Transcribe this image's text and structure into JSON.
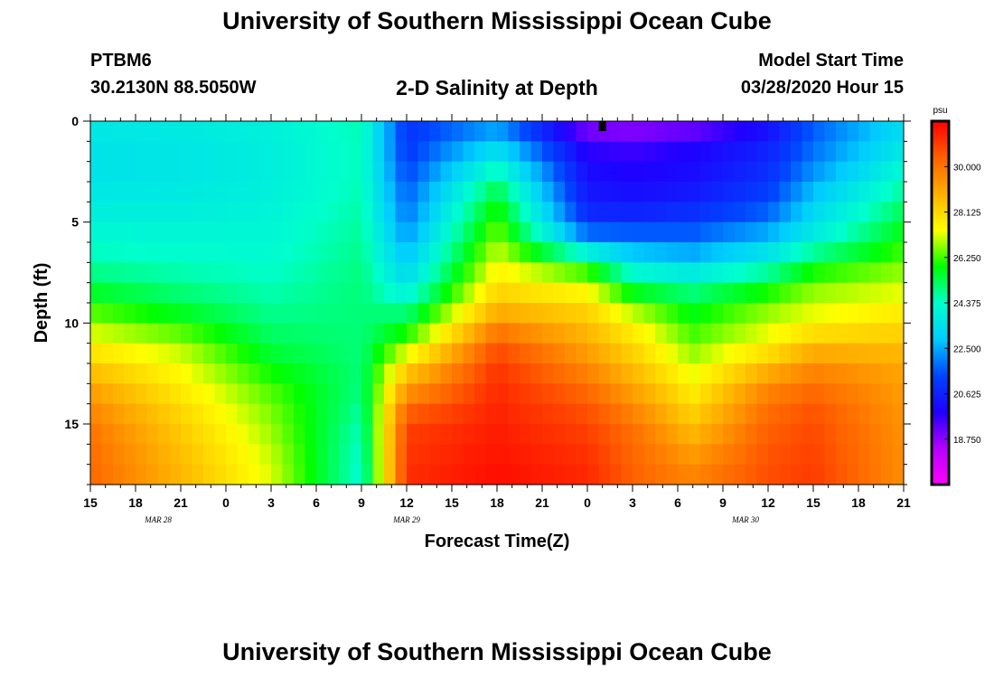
{
  "header": {
    "title": "University of Southern Mississippi Ocean Cube",
    "station_id": "PTBM6",
    "station_coords": "30.2130N 88.5050W",
    "chart_title": "2-D Salinity at Depth",
    "model_start_label": "Model Start Time",
    "model_start_value": "03/28/2020 Hour 15"
  },
  "footer": {
    "title": "University of Southern Mississippi Ocean Cube"
  },
  "chart_data": {
    "type": "heatmap",
    "title": "2-D Salinity at Depth",
    "xlabel": "Forecast Time(Z)",
    "ylabel": "Depth (ft)",
    "x_ticks": [
      "15",
      "18",
      "21",
      "0",
      "3",
      "6",
      "9",
      "12",
      "15",
      "18",
      "21",
      "0",
      "3",
      "6",
      "9",
      "12",
      "15",
      "18",
      "21"
    ],
    "x_range_hours": [
      0,
      54
    ],
    "date_labels": [
      {
        "text": "MAR  28",
        "hour": 4.5
      },
      {
        "text": "MAR  29",
        "hour": 21
      },
      {
        "text": "MAR  30",
        "hour": 43.5
      }
    ],
    "y_ticks": [
      0,
      5,
      10,
      15
    ],
    "ylim": [
      0,
      18
    ],
    "current_time_hour": 34,
    "colorbar": {
      "unit": "psu",
      "min": 16.875,
      "max": 31.875,
      "labels": [
        "30.000",
        "28.125",
        "26.250",
        "24.375",
        "22.500",
        "20.625",
        "18.750"
      ],
      "colors": [
        "#ff00ff",
        "#b400ff",
        "#1e00ff",
        "#0044ff",
        "#00ccff",
        "#00ffcc",
        "#00ff00",
        "#ffff00",
        "#ffb000",
        "#ff6000",
        "#ff0000"
      ]
    },
    "depth_levels_ft": [
      0,
      1,
      2,
      3,
      4,
      5,
      6,
      7,
      8,
      9,
      10,
      11,
      12,
      13,
      14,
      15,
      16,
      17,
      18
    ],
    "time_columns_hours": [
      0,
      6,
      12,
      18,
      21,
      27,
      33,
      36,
      40,
      45,
      48,
      54
    ],
    "salinity_psu": [
      [
        23.8,
        23.8,
        24.0,
        24.6,
        21.0,
        22.0,
        18.6,
        18.4,
        18.6,
        20.0,
        21.5,
        23.3
      ],
      [
        23.6,
        23.7,
        23.9,
        24.5,
        21.0,
        23.0,
        19.5,
        19.4,
        19.8,
        20.5,
        21.8,
        23.5
      ],
      [
        23.5,
        23.6,
        23.9,
        24.5,
        21.2,
        24.0,
        20.0,
        19.8,
        20.0,
        20.8,
        22.0,
        24.0
      ],
      [
        23.6,
        23.7,
        23.9,
        24.5,
        21.5,
        25.0,
        20.2,
        20.0,
        20.2,
        21.0,
        22.5,
        24.5
      ],
      [
        23.8,
        23.8,
        24.0,
        24.6,
        21.8,
        25.8,
        20.5,
        20.3,
        20.6,
        21.4,
        23.0,
        25.0
      ],
      [
        24.0,
        24.0,
        24.1,
        24.7,
        22.0,
        26.3,
        21.0,
        21.0,
        21.2,
        22.0,
        23.5,
        25.5
      ],
      [
        24.3,
        24.2,
        24.2,
        24.8,
        22.5,
        26.8,
        22.5,
        22.2,
        22.0,
        23.0,
        24.0,
        26.0
      ],
      [
        24.6,
        24.4,
        24.3,
        24.9,
        23.0,
        27.3,
        25.5,
        23.5,
        23.0,
        24.0,
        25.5,
        26.5
      ],
      [
        25.2,
        24.8,
        24.5,
        25.0,
        23.5,
        27.9,
        27.0,
        25.0,
        24.5,
        25.5,
        26.5,
        27.0
      ],
      [
        26.0,
        25.3,
        24.7,
        25.0,
        24.5,
        28.5,
        28.0,
        26.5,
        25.5,
        26.5,
        27.0,
        27.5
      ],
      [
        26.8,
        26.0,
        25.0,
        25.0,
        25.5,
        29.5,
        28.5,
        27.5,
        26.0,
        27.0,
        27.5,
        28.0
      ],
      [
        27.5,
        26.8,
        25.3,
        25.0,
        26.5,
        30.5,
        29.0,
        28.0,
        26.5,
        27.5,
        28.5,
        28.5
      ],
      [
        28.3,
        27.3,
        25.7,
        25.0,
        28.0,
        31.0,
        29.5,
        28.5,
        27.0,
        28.5,
        29.5,
        29.0
      ],
      [
        29.0,
        27.6,
        26.2,
        25.0,
        29.0,
        31.2,
        30.0,
        29.0,
        27.5,
        29.5,
        30.0,
        29.2
      ],
      [
        29.5,
        28.0,
        26.5,
        24.8,
        30.0,
        31.3,
        30.5,
        29.5,
        28.0,
        30.0,
        30.5,
        29.3
      ],
      [
        29.9,
        28.3,
        26.7,
        24.6,
        30.8,
        31.4,
        30.8,
        30.0,
        28.5,
        30.3,
        30.7,
        29.4
      ],
      [
        30.1,
        28.5,
        26.9,
        24.4,
        31.0,
        31.5,
        31.0,
        30.2,
        29.0,
        30.5,
        30.8,
        29.5
      ],
      [
        30.2,
        28.7,
        27.1,
        24.3,
        31.1,
        31.6,
        31.2,
        30.3,
        29.5,
        30.6,
        30.9,
        29.5
      ],
      [
        30.3,
        28.8,
        27.2,
        24.2,
        31.2,
        31.7,
        31.3,
        30.4,
        29.8,
        30.7,
        31.0,
        29.5
      ]
    ]
  }
}
